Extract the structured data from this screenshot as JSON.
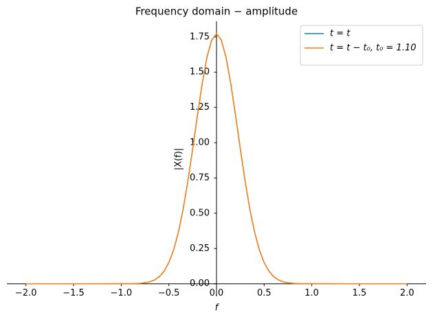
{
  "chart_data": {
    "type": "line",
    "title": "Frequency domain − amplitude",
    "xlabel": "f",
    "ylabel": "|X(f)|",
    "x": [
      -2,
      -1.5,
      -1,
      -0.95,
      -0.9,
      -0.85,
      -0.8,
      -0.75,
      -0.7,
      -0.65,
      -0.6,
      -0.55,
      -0.5,
      -0.45,
      -0.4,
      -0.35,
      -0.3,
      -0.25,
      -0.2,
      -0.15,
      -0.1,
      -0.05,
      0,
      0.05,
      0.1,
      0.15,
      0.2,
      0.25,
      0.3,
      0.35,
      0.4,
      0.45,
      0.5,
      0.55,
      0.6,
      0.65,
      0.7,
      0.75,
      0.8,
      0.85,
      0.9,
      0.95,
      1,
      1.5,
      2
    ],
    "series": [
      {
        "name": "t = t",
        "color": "#1f77b4",
        "values": [
          0,
          0,
          0.0001,
          0.0002,
          0.0006,
          0.0014,
          0.0032,
          0.0069,
          0.0141,
          0.0274,
          0.0507,
          0.0895,
          0.15,
          0.24,
          0.365,
          0.529,
          0.729,
          0.956,
          1.194,
          1.419,
          1.606,
          1.729,
          1.772,
          1.729,
          1.606,
          1.419,
          1.194,
          0.956,
          0.729,
          0.529,
          0.365,
          0.24,
          0.15,
          0.0895,
          0.0507,
          0.0274,
          0.0141,
          0.0069,
          0.0032,
          0.0014,
          0.0006,
          0.0002,
          0.0001,
          0,
          0
        ]
      },
      {
        "name": "t = t − t₀, t₀ = 1.10",
        "color": "#ff7f0e",
        "values": [
          0,
          0,
          0.0001,
          0.0002,
          0.0006,
          0.0014,
          0.0032,
          0.0069,
          0.0141,
          0.0274,
          0.0507,
          0.0895,
          0.15,
          0.24,
          0.365,
          0.529,
          0.729,
          0.956,
          1.194,
          1.419,
          1.606,
          1.729,
          1.772,
          1.729,
          1.606,
          1.419,
          1.194,
          0.956,
          0.729,
          0.529,
          0.365,
          0.24,
          0.15,
          0.0895,
          0.0507,
          0.0274,
          0.0141,
          0.0069,
          0.0032,
          0.0014,
          0.0006,
          0.0002,
          0.0001,
          0,
          0
        ]
      }
    ],
    "xlim": [
      -2.2,
      2.2
    ],
    "ylim": [
      -0.089,
      1.861
    ],
    "xticks": [
      {
        "value": -2,
        "label": "−2.0"
      },
      {
        "value": -1.5,
        "label": "−1.5"
      },
      {
        "value": -1,
        "label": "−1.0"
      },
      {
        "value": -0.5,
        "label": "−0.5"
      },
      {
        "value": 0,
        "label": "0.0"
      },
      0.5,
      {
        "value": 1,
        "label": "1.0"
      },
      1.5,
      {
        "value": 2,
        "label": "2.0"
      }
    ],
    "yticks": [
      {
        "value": 0,
        "label": "0.00"
      },
      0.25,
      {
        "value": 0.5,
        "label": "0.50"
      },
      0.75,
      {
        "value": 1,
        "label": "1.00"
      },
      1.25,
      {
        "value": 1.5,
        "label": "1.50"
      },
      1.75
    ],
    "legend": "upper right",
    "grid": false
  }
}
